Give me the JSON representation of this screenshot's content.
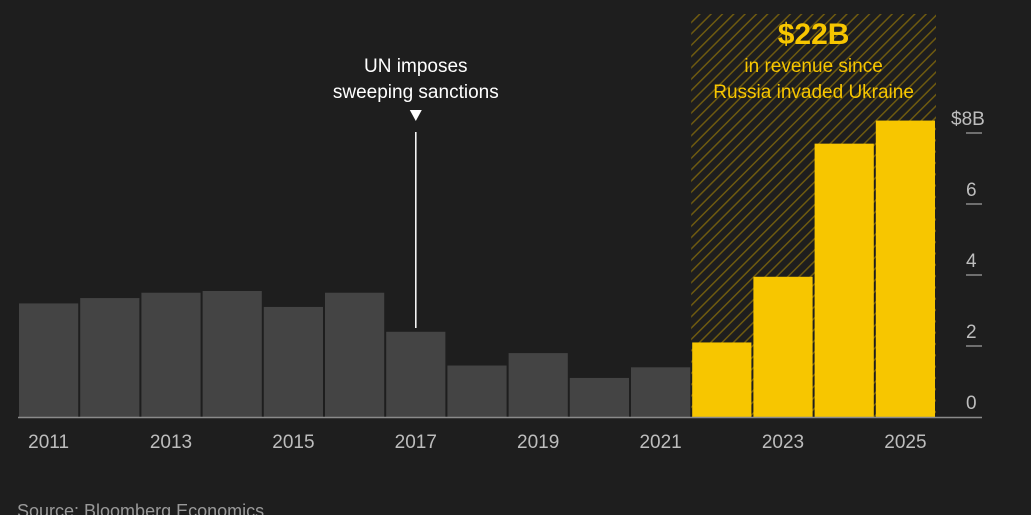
{
  "chart_data": {
    "type": "bar",
    "x": [
      2011,
      2012,
      2013,
      2014,
      2015,
      2016,
      2017,
      2018,
      2019,
      2020,
      2021,
      2022,
      2023,
      2024,
      2025
    ],
    "values": [
      3.2,
      3.35,
      3.5,
      3.55,
      3.1,
      3.5,
      2.4,
      1.45,
      1.8,
      1.1,
      1.4,
      2.1,
      3.95,
      7.7,
      8.35
    ],
    "highlight_from": 2022,
    "ylim": [
      0,
      8
    ],
    "yticks": [
      0,
      2,
      4,
      6,
      8
    ],
    "ytick_labels": [
      "0",
      "2",
      "4",
      "6",
      "$8B"
    ],
    "xtick_labels": [
      "2011",
      "2013",
      "2015",
      "2017",
      "2019",
      "2021",
      "2023",
      "2025"
    ],
    "annotations": [
      {
        "year": 2017,
        "lines": [
          "UN imposes",
          "sweeping sanctions"
        ]
      }
    ],
    "highlight_label": {
      "big": "$22B",
      "lines": [
        "in revenue since",
        "Russia invaded Ukraine"
      ]
    },
    "source": "Source: Bloomberg Economics",
    "colors": {
      "base": "#444444",
      "highlight": "#f7c600",
      "axis": "#8a8a8a",
      "background": "#1e1e1e"
    }
  }
}
